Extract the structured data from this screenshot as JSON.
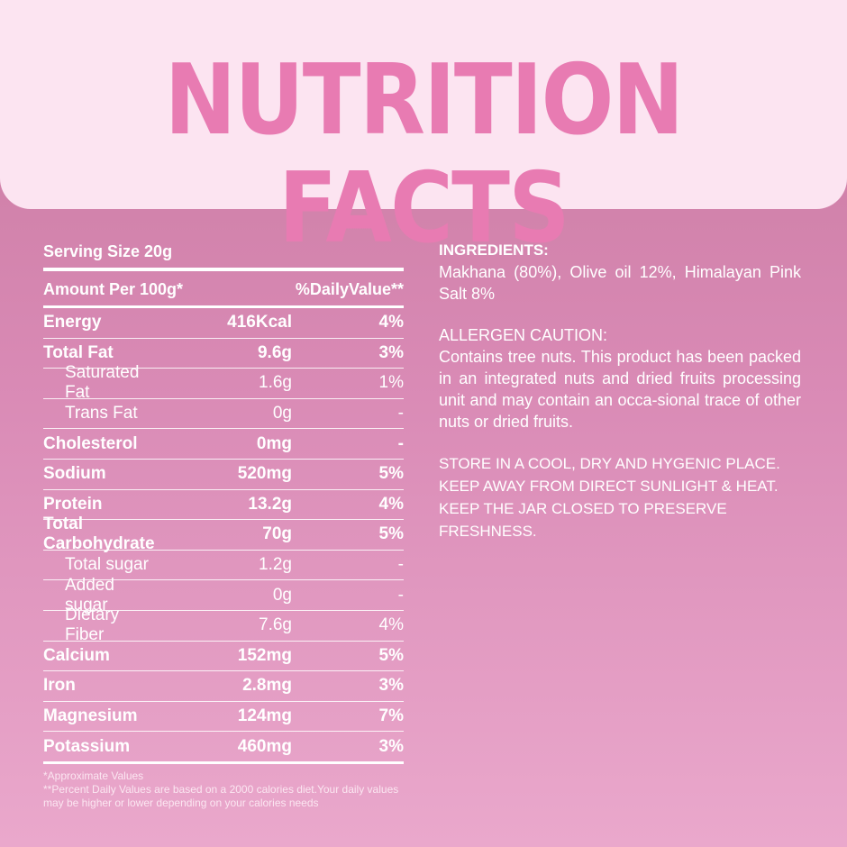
{
  "title": "NUTRITION FACTS",
  "serving_size": "Serving Size 20g",
  "table_header": {
    "amount": "Amount Per 100g*",
    "daily_value": "%DailyValue**"
  },
  "rows": [
    {
      "name": "Energy",
      "amount": "416Kcal",
      "dv": "4%",
      "bold": true
    },
    {
      "name": "Total Fat",
      "amount": "9.6g",
      "dv": "3%",
      "bold": true
    },
    {
      "name": "Saturated Fat",
      "amount": "1.6g",
      "dv": "1%",
      "bold": false
    },
    {
      "name": "Trans Fat",
      "amount": "0g",
      "dv": "-",
      "bold": false
    },
    {
      "name": "Cholesterol",
      "amount": "0mg",
      "dv": "-",
      "bold": true
    },
    {
      "name": "Sodium",
      "amount": "520mg",
      "dv": "5%",
      "bold": true
    },
    {
      "name": "Protein",
      "amount": "13.2g",
      "dv": "4%",
      "bold": true
    },
    {
      "name": "Total Carbohydrate",
      "amount": "70g",
      "dv": "5%",
      "bold": true
    },
    {
      "name": "Total sugar",
      "amount": "1.2g",
      "dv": "-",
      "bold": false
    },
    {
      "name": "Added sugar",
      "amount": "0g",
      "dv": "-",
      "bold": false
    },
    {
      "name": "Dietary Fiber",
      "amount": "7.6g",
      "dv": "4%",
      "bold": false
    },
    {
      "name": "Calcium",
      "amount": "152mg",
      "dv": "5%",
      "bold": true
    },
    {
      "name": "Iron",
      "amount": "2.8mg",
      "dv": "3%",
      "bold": true
    },
    {
      "name": "Magnesium",
      "amount": "124mg",
      "dv": "7%",
      "bold": true
    },
    {
      "name": "Potassium",
      "amount": "460mg",
      "dv": "3%",
      "bold": true
    }
  ],
  "footnotes": {
    "approx": "*Approximate Values",
    "dv_note": "**Percent Daily Values are based on a 2000 calories diet.Your daily values may be higher or lower depending on your calories needs"
  },
  "ingredients": {
    "heading": "INGREDIENTS:",
    "text": "Makhana (80%), Olive oil 12%, Himalayan Pink Salt 8%"
  },
  "allergen": {
    "heading": "ALLERGEN CAUTION:",
    "text": "Contains tree nuts. This product has been packed in an integrated nuts and dried fruits processing unit and may contain an occa-sional trace of other nuts or dried fruits."
  },
  "storage": "STORE IN A COOL, DRY AND HYGENIC PLACE. KEEP AWAY FROM DIRECT SUNLIGHT & HEAT. KEEP THE JAR CLOSED TO PRESERVE FRESHNESS."
}
